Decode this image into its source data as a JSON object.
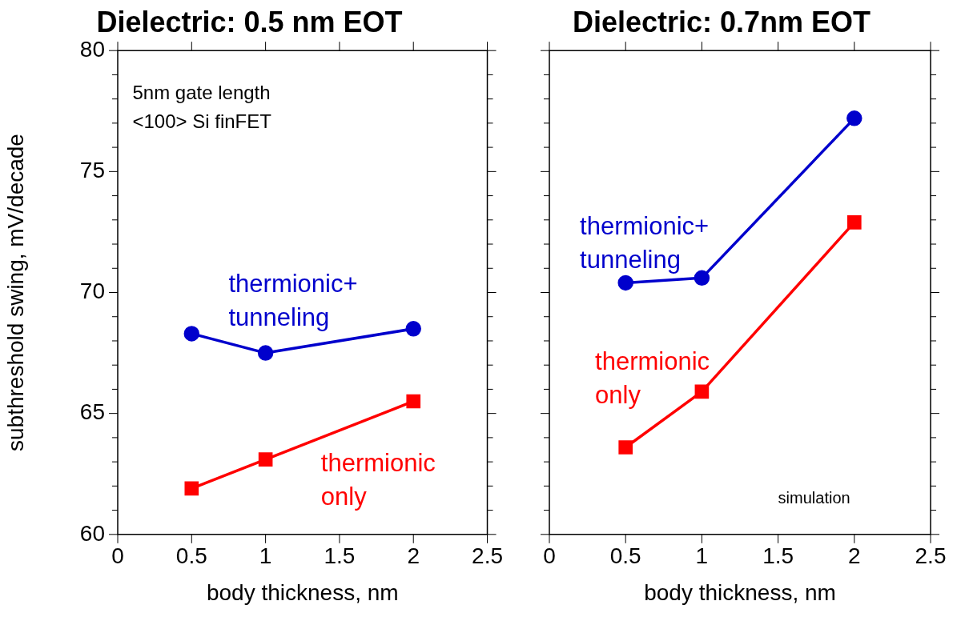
{
  "chart_data": [
    {
      "type": "line",
      "title": "Dielectric: 0.5 nm EOT",
      "xlabel": "body thickness, nm",
      "ylabel": "subthreshold swing, mV/decade",
      "x": [
        0.5,
        1,
        2
      ],
      "series": [
        {
          "name": "thermionic+\ntunneling",
          "color": "#0000cc",
          "marker": "circle",
          "values": [
            68.3,
            67.5,
            68.5
          ]
        },
        {
          "name": "thermionic\nonly",
          "color": "#ff0000",
          "marker": "square",
          "values": [
            61.9,
            63.1,
            65.5
          ]
        }
      ],
      "xlim": [
        0,
        2.5
      ],
      "xticks": [
        0,
        0.5,
        1,
        1.5,
        2,
        2.5
      ],
      "ylim": [
        60,
        80
      ],
      "yticks": [
        60,
        {
          "value": 61,
          "label": null
        },
        {
          "value": 62,
          "label": null
        },
        {
          "value": 63,
          "label": null
        },
        {
          "value": 64,
          "label": null
        },
        65,
        {
          "value": 66,
          "label": null
        },
        {
          "value": 67,
          "label": null
        },
        {
          "value": 68,
          "label": null
        },
        {
          "value": 69,
          "label": null
        },
        70,
        {
          "value": 71,
          "label": null
        },
        {
          "value": 72,
          "label": null
        },
        {
          "value": 73,
          "label": null
        },
        {
          "value": 74,
          "label": null
        },
        75,
        {
          "value": 76,
          "label": null
        },
        {
          "value": 77,
          "label": null
        },
        {
          "value": 78,
          "label": null
        },
        {
          "value": 79,
          "label": null
        },
        80
      ],
      "annotations": [
        "5nm gate length\n<100> Si finFET"
      ]
    },
    {
      "type": "line",
      "title": "Dielectric: 0.7nm EOT",
      "xlabel": "body thickness, nm",
      "x": [
        0.5,
        1,
        2
      ],
      "series": [
        {
          "name": "thermionic+\ntunneling",
          "color": "#0000cc",
          "marker": "circle",
          "values": [
            70.4,
            70.6,
            77.2
          ]
        },
        {
          "name": "thermionic\nonly",
          "color": "#ff0000",
          "marker": "square",
          "values": [
            63.6,
            65.9,
            72.9
          ]
        }
      ],
      "xlim": [
        0,
        2.5
      ],
      "xticks": [
        0,
        0.5,
        1,
        1.5,
        2,
        2.5
      ],
      "ylim": [
        60,
        80
      ],
      "yticks": [
        60,
        {
          "value": 61,
          "label": null
        },
        {
          "value": 62,
          "label": null
        },
        {
          "value": 63,
          "label": null
        },
        {
          "value": 64,
          "label": null
        },
        65,
        {
          "value": 66,
          "label": null
        },
        {
          "value": 67,
          "label": null
        },
        {
          "value": 68,
          "label": null
        },
        {
          "value": 69,
          "label": null
        },
        70,
        {
          "value": 71,
          "label": null
        },
        {
          "value": 72,
          "label": null
        },
        {
          "value": 73,
          "label": null
        },
        {
          "value": 74,
          "label": null
        },
        75,
        {
          "value": 76,
          "label": null
        },
        {
          "value": 77,
          "label": null
        },
        {
          "value": 78,
          "label": null
        },
        {
          "value": 79,
          "label": null
        },
        80
      ],
      "tick_labels": "x",
      "annotations": [
        "simulation"
      ]
    }
  ]
}
